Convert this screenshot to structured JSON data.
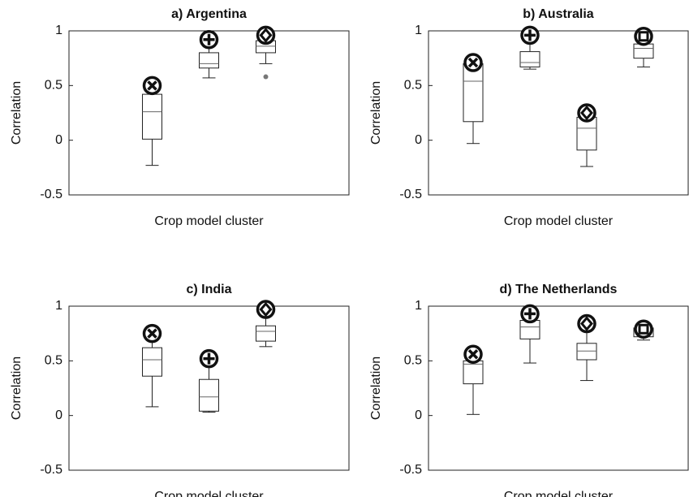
{
  "chart_data": [
    {
      "type": "box",
      "title": "a) Argentina",
      "xlabel": "Crop model cluster",
      "ylabel": "Correlation",
      "ylim": [
        -0.5,
        1
      ],
      "yticks": [
        1,
        0.5,
        0,
        -0.5
      ],
      "boxes": [
        {
          "whislo": -0.23,
          "q1": 0.01,
          "med": 0.26,
          "q3": 0.42,
          "whishi": 0.42,
          "fliers": []
        },
        {
          "whislo": 0.57,
          "q1": 0.66,
          "med": 0.7,
          "q3": 0.8,
          "whishi": 0.92,
          "fliers": []
        },
        {
          "whislo": 0.7,
          "q1": 0.8,
          "med": 0.86,
          "q3": 0.91,
          "whishi": 0.96,
          "fliers": [
            0.58
          ]
        }
      ],
      "markers": [
        0.5,
        0.92,
        0.96
      ],
      "marker_symbols": [
        "x",
        "plus",
        "diamond"
      ]
    },
    {
      "type": "box",
      "title": "b) Australia",
      "xlabel": "Crop model cluster",
      "ylabel": "Correlation",
      "ylim": [
        -0.5,
        1
      ],
      "yticks": [
        1,
        0.5,
        0,
        -0.5
      ],
      "boxes": [
        {
          "whislo": -0.03,
          "q1": 0.17,
          "med": 0.54,
          "q3": 0.7,
          "whishi": 0.7,
          "fliers": []
        },
        {
          "whislo": 0.65,
          "q1": 0.67,
          "med": 0.71,
          "q3": 0.81,
          "whishi": 0.96,
          "fliers": []
        },
        {
          "whislo": -0.24,
          "q1": -0.09,
          "med": 0.11,
          "q3": 0.21,
          "whishi": 0.25,
          "fliers": []
        },
        {
          "whislo": 0.67,
          "q1": 0.75,
          "med": 0.84,
          "q3": 0.88,
          "whishi": 0.95,
          "fliers": []
        }
      ],
      "markers": [
        0.71,
        0.96,
        0.25,
        0.95
      ],
      "marker_symbols": [
        "x",
        "plus",
        "diamond",
        "square"
      ]
    },
    {
      "type": "box",
      "title": "c) India",
      "xlabel": "Crop model cluster",
      "ylabel": "Correlation",
      "ylim": [
        -0.5,
        1
      ],
      "yticks": [
        1,
        0.5,
        0,
        -0.5
      ],
      "boxes": [
        {
          "whislo": 0.08,
          "q1": 0.36,
          "med": 0.51,
          "q3": 0.62,
          "whishi": 0.75,
          "fliers": []
        },
        {
          "whislo": 0.03,
          "q1": 0.04,
          "med": 0.17,
          "q3": 0.33,
          "whishi": 0.52,
          "fliers": []
        },
        {
          "whislo": 0.63,
          "q1": 0.68,
          "med": 0.77,
          "q3": 0.82,
          "whishi": 0.97,
          "fliers": []
        }
      ],
      "markers": [
        0.75,
        0.52,
        0.97
      ],
      "marker_symbols": [
        "x",
        "plus",
        "diamond"
      ]
    },
    {
      "type": "box",
      "title": "d) The Netherlands",
      "xlabel": "Crop model cluster",
      "ylabel": "Correlation",
      "ylim": [
        -0.5,
        1
      ],
      "yticks": [
        1,
        0.5,
        0,
        -0.5
      ],
      "boxes": [
        {
          "whislo": 0.01,
          "q1": 0.29,
          "med": 0.47,
          "q3": 0.5,
          "whishi": 0.56,
          "fliers": []
        },
        {
          "whislo": 0.48,
          "q1": 0.7,
          "med": 0.81,
          "q3": 0.87,
          "whishi": 0.93,
          "fliers": []
        },
        {
          "whislo": 0.32,
          "q1": 0.51,
          "med": 0.59,
          "q3": 0.66,
          "whishi": 0.84,
          "fliers": []
        },
        {
          "whislo": 0.69,
          "q1": 0.72,
          "med": 0.77,
          "q3": 0.8,
          "whishi": 0.8,
          "fliers": []
        }
      ],
      "markers": [
        0.56,
        0.93,
        0.84,
        0.79
      ],
      "marker_symbols": [
        "x",
        "plus",
        "diamond",
        "square"
      ]
    }
  ]
}
